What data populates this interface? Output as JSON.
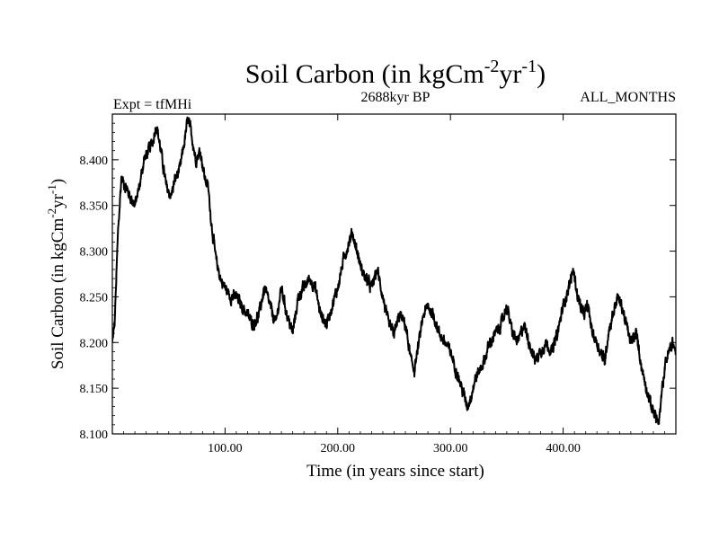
{
  "chart_data": {
    "type": "line",
    "title": {
      "prefix": "Soil Carbon (in kgCm",
      "sup1": "-2",
      "mid": "yr",
      "sup2": "-1",
      "suffix": ")"
    },
    "subtitle_left": "Expt = tfMHi",
    "subtitle_center": "2688kyr BP",
    "subtitle_right": "ALL_MONTHS",
    "xlabel": "Time (in years since start)",
    "ylabel": {
      "prefix": "Soil Carbon (in kgCm",
      "sup1": "-2",
      "mid": "yr",
      "sup2": "-1",
      "suffix": ")"
    },
    "xlim": [
      0,
      500
    ],
    "ylim": [
      8.1,
      8.45
    ],
    "x_ticks": [
      100,
      200,
      300,
      400
    ],
    "x_tick_labels": [
      "100.00",
      "200.00",
      "300.00",
      "400.00"
    ],
    "y_ticks": [
      8.1,
      8.15,
      8.2,
      8.25,
      8.3,
      8.35,
      8.4
    ],
    "y_tick_labels": [
      "8.100",
      "8.150",
      "8.200",
      "8.250",
      "8.300",
      "8.350",
      "8.400"
    ],
    "series": [
      {
        "name": "Soil Carbon",
        "color": "#000000",
        "noise_amplitude": 0.006,
        "points": [
          [
            0,
            8.2
          ],
          [
            2,
            8.22
          ],
          [
            5,
            8.32
          ],
          [
            8,
            8.38
          ],
          [
            12,
            8.37
          ],
          [
            16,
            8.36
          ],
          [
            20,
            8.35
          ],
          [
            24,
            8.37
          ],
          [
            28,
            8.4
          ],
          [
            32,
            8.41
          ],
          [
            36,
            8.42
          ],
          [
            39,
            8.44
          ],
          [
            43,
            8.41
          ],
          [
            48,
            8.37
          ],
          [
            52,
            8.36
          ],
          [
            56,
            8.38
          ],
          [
            60,
            8.39
          ],
          [
            64,
            8.42
          ],
          [
            67,
            8.445
          ],
          [
            70,
            8.43
          ],
          [
            74,
            8.4
          ],
          [
            78,
            8.41
          ],
          [
            82,
            8.38
          ],
          [
            85,
            8.37
          ],
          [
            88,
            8.33
          ],
          [
            92,
            8.29
          ],
          [
            96,
            8.27
          ],
          [
            100,
            8.26
          ],
          [
            105,
            8.25
          ],
          [
            110,
            8.25
          ],
          [
            115,
            8.24
          ],
          [
            120,
            8.23
          ],
          [
            125,
            8.22
          ],
          [
            130,
            8.23
          ],
          [
            135,
            8.26
          ],
          [
            140,
            8.24
          ],
          [
            145,
            8.22
          ],
          [
            150,
            8.26
          ],
          [
            155,
            8.23
          ],
          [
            160,
            8.21
          ],
          [
            165,
            8.25
          ],
          [
            170,
            8.26
          ],
          [
            175,
            8.27
          ],
          [
            180,
            8.26
          ],
          [
            185,
            8.23
          ],
          [
            190,
            8.22
          ],
          [
            195,
            8.24
          ],
          [
            200,
            8.26
          ],
          [
            205,
            8.29
          ],
          [
            210,
            8.31
          ],
          [
            213,
            8.32
          ],
          [
            217,
            8.3
          ],
          [
            221,
            8.28
          ],
          [
            225,
            8.27
          ],
          [
            230,
            8.26
          ],
          [
            235,
            8.28
          ],
          [
            240,
            8.25
          ],
          [
            245,
            8.22
          ],
          [
            250,
            8.21
          ],
          [
            255,
            8.23
          ],
          [
            260,
            8.22
          ],
          [
            265,
            8.18
          ],
          [
            268,
            8.17
          ],
          [
            272,
            8.2
          ],
          [
            276,
            8.23
          ],
          [
            280,
            8.24
          ],
          [
            285,
            8.23
          ],
          [
            290,
            8.21
          ],
          [
            295,
            8.2
          ],
          [
            300,
            8.19
          ],
          [
            305,
            8.17
          ],
          [
            310,
            8.15
          ],
          [
            315,
            8.13
          ],
          [
            318,
            8.14
          ],
          [
            322,
            8.16
          ],
          [
            326,
            8.17
          ],
          [
            330,
            8.18
          ],
          [
            335,
            8.2
          ],
          [
            340,
            8.21
          ],
          [
            345,
            8.22
          ],
          [
            350,
            8.24
          ],
          [
            355,
            8.21
          ],
          [
            360,
            8.2
          ],
          [
            365,
            8.22
          ],
          [
            370,
            8.2
          ],
          [
            375,
            8.18
          ],
          [
            380,
            8.19
          ],
          [
            385,
            8.2
          ],
          [
            390,
            8.19
          ],
          [
            395,
            8.21
          ],
          [
            400,
            8.24
          ],
          [
            405,
            8.26
          ],
          [
            409,
            8.28
          ],
          [
            413,
            8.25
          ],
          [
            418,
            8.23
          ],
          [
            422,
            8.24
          ],
          [
            426,
            8.21
          ],
          [
            430,
            8.2
          ],
          [
            433,
            8.19
          ],
          [
            437,
            8.18
          ],
          [
            440,
            8.21
          ],
          [
            444,
            8.23
          ],
          [
            448,
            8.25
          ],
          [
            452,
            8.24
          ],
          [
            456,
            8.22
          ],
          [
            460,
            8.2
          ],
          [
            465,
            8.21
          ],
          [
            470,
            8.17
          ],
          [
            474,
            8.15
          ],
          [
            478,
            8.13
          ],
          [
            482,
            8.12
          ],
          [
            485,
            8.11
          ],
          [
            488,
            8.15
          ],
          [
            491,
            8.18
          ],
          [
            494,
            8.19
          ],
          [
            497,
            8.2
          ],
          [
            500,
            8.19
          ]
        ]
      }
    ]
  }
}
